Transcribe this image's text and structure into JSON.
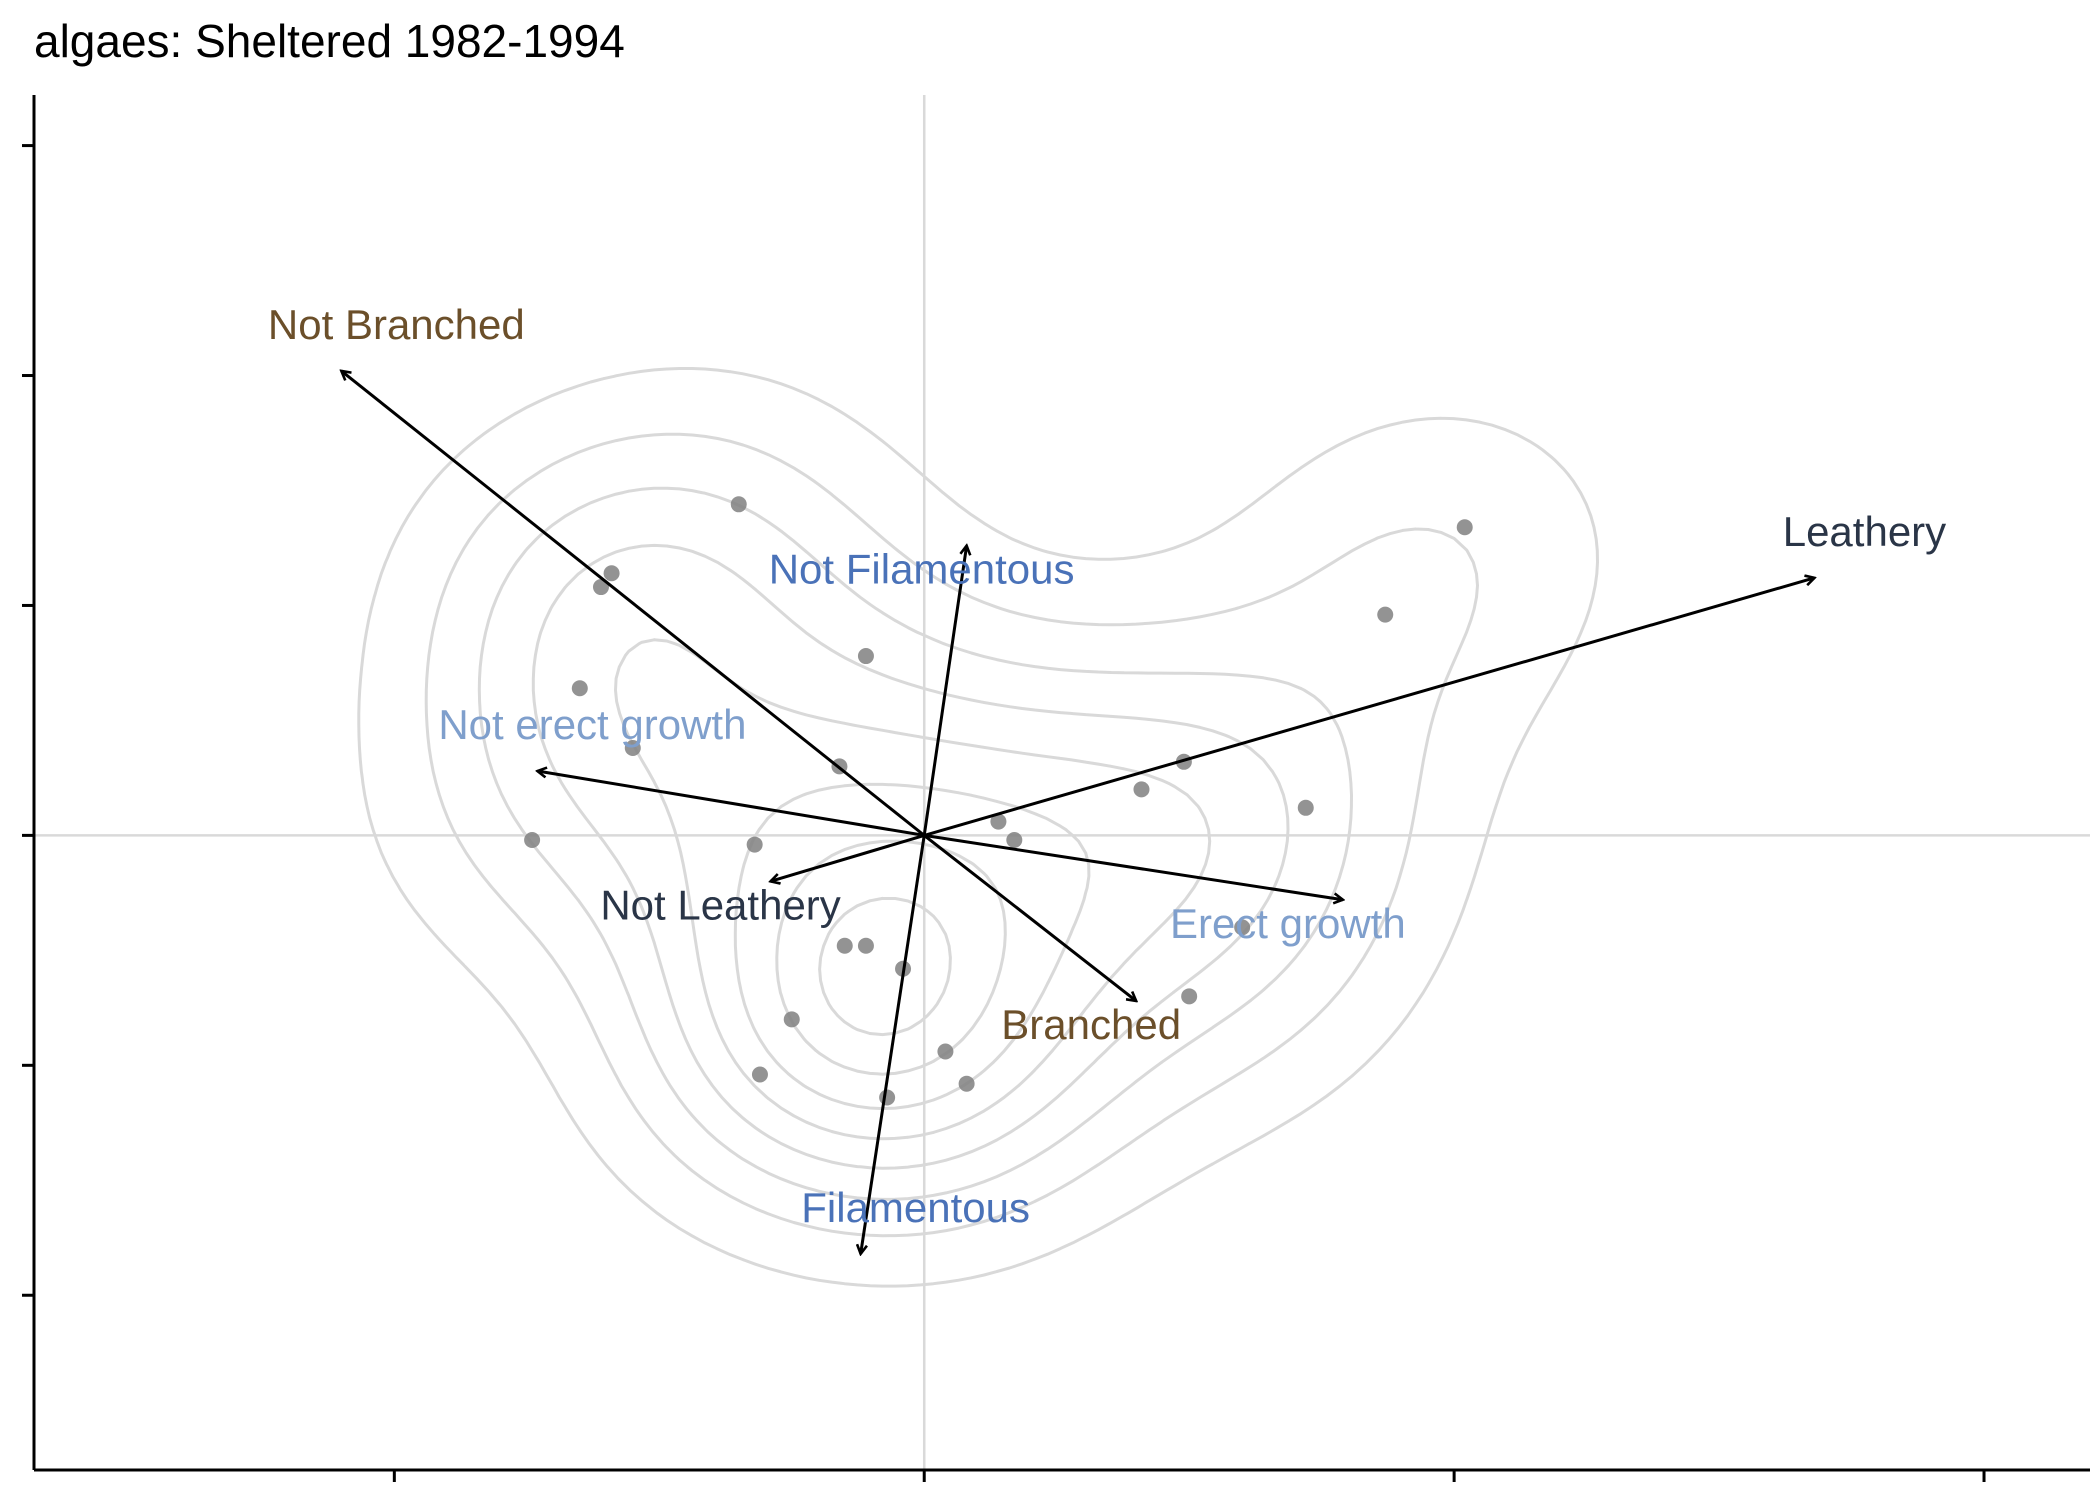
{
  "chart_data": {
    "type": "scatter",
    "title": "algaes: Sheltered 1982-1994",
    "xlabel": "",
    "ylabel": "",
    "xlim": [
      -1.68,
      2.2
    ],
    "ylim": [
      -1.38,
      1.61
    ],
    "reference_lines": {
      "x": 0,
      "y": 0,
      "color": "#d9d9d9"
    },
    "grid": false,
    "point_color": "#808080",
    "contour_color": "#d9d9d9",
    "arrow_color": "#000000",
    "points": [
      {
        "x": -0.35,
        "y": 0.72
      },
      {
        "x": -0.59,
        "y": 0.57
      },
      {
        "x": -0.61,
        "y": 0.54
      },
      {
        "x": 1.02,
        "y": 0.67
      },
      {
        "x": 0.87,
        "y": 0.48
      },
      {
        "x": -0.11,
        "y": 0.39
      },
      {
        "x": -0.65,
        "y": 0.32
      },
      {
        "x": -0.55,
        "y": 0.19
      },
      {
        "x": -0.16,
        "y": 0.15
      },
      {
        "x": 0.49,
        "y": 0.16
      },
      {
        "x": 0.41,
        "y": 0.1
      },
      {
        "x": 0.72,
        "y": 0.06
      },
      {
        "x": 0.14,
        "y": 0.03
      },
      {
        "x": 0.17,
        "y": -0.01
      },
      {
        "x": -0.74,
        "y": -0.01
      },
      {
        "x": -0.32,
        "y": -0.02
      },
      {
        "x": 0.6,
        "y": -0.2
      },
      {
        "x": -0.15,
        "y": -0.24
      },
      {
        "x": -0.11,
        "y": -0.24
      },
      {
        "x": -0.04,
        "y": -0.29
      },
      {
        "x": 0.5,
        "y": -0.35
      },
      {
        "x": -0.25,
        "y": -0.4
      },
      {
        "x": 0.04,
        "y": -0.47
      },
      {
        "x": -0.31,
        "y": -0.52
      },
      {
        "x": 0.08,
        "y": -0.54
      },
      {
        "x": -0.07,
        "y": -0.57
      }
    ],
    "arrows": [
      {
        "label": "Not Branched",
        "x": -1.1,
        "y": 1.01,
        "color": "#6b4f2a"
      },
      {
        "label": "Branched",
        "x": 0.4,
        "y": -0.36,
        "color": "#6b4f2a"
      },
      {
        "label": "Not Filamentous",
        "x": 0.08,
        "y": 0.63,
        "color": "#4a72b8"
      },
      {
        "label": "Filamentous",
        "x": -0.12,
        "y": -0.91,
        "color": "#4a72b8"
      },
      {
        "label": "Not erect growth",
        "x": -0.73,
        "y": 0.14,
        "color": "#7f9fcc"
      },
      {
        "label": "Erect growth",
        "x": 0.79,
        "y": -0.14,
        "color": "#7f9fcc"
      },
      {
        "label": "Leathery",
        "x": 1.68,
        "y": 0.56,
        "color": "#2a3547"
      },
      {
        "label": "Not Leathery",
        "x": -0.29,
        "y": -0.1,
        "color": "#2a3547"
      }
    ]
  }
}
